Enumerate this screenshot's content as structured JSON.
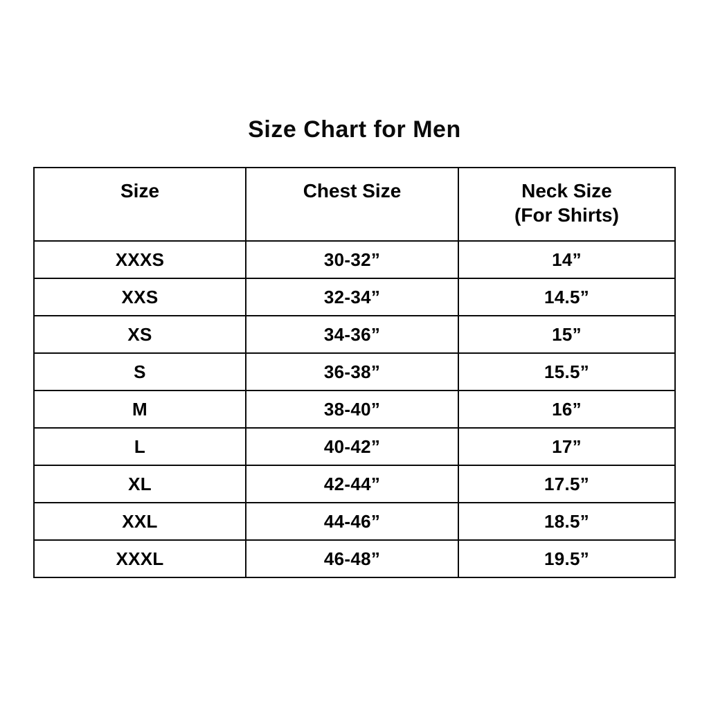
{
  "page": {
    "title": "Size Chart for Men",
    "background_color": "#ffffff",
    "text_color": "#000000",
    "border_color": "#000000"
  },
  "table": {
    "columns": [
      {
        "label": "Size",
        "sublabel": ""
      },
      {
        "label": "Chest Size",
        "sublabel": ""
      },
      {
        "label": "Neck Size",
        "sublabel": "(For Shirts)"
      }
    ],
    "rows": [
      {
        "size": "XXXS",
        "chest": "30-32”",
        "neck": "14”"
      },
      {
        "size": "XXS",
        "chest": "32-34”",
        "neck": "14.5”"
      },
      {
        "size": "XS",
        "chest": "34-36”",
        "neck": "15”"
      },
      {
        "size": "S",
        "chest": "36-38”",
        "neck": "15.5”"
      },
      {
        "size": "M",
        "chest": "38-40”",
        "neck": "16”"
      },
      {
        "size": "L",
        "chest": "40-42”",
        "neck": "17”"
      },
      {
        "size": "XL",
        "chest": "42-44”",
        "neck": "17.5”"
      },
      {
        "size": "XXL",
        "chest": "44-46”",
        "neck": "18.5”"
      },
      {
        "size": "XXXL",
        "chest": "46-48”",
        "neck": "19.5”"
      }
    ]
  }
}
